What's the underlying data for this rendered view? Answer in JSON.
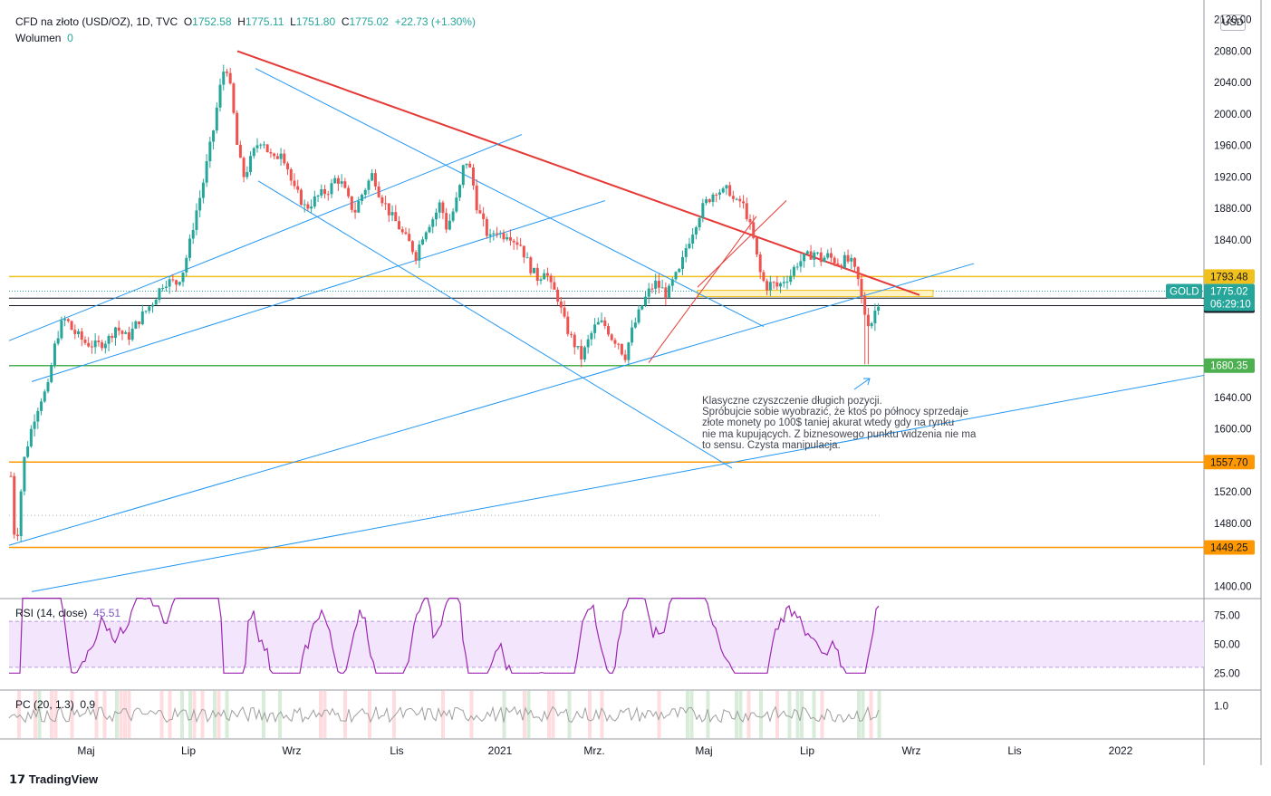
{
  "header": {
    "symbol": "CFD na złoto (USD/OZ), 1D, TVC",
    "o_label": "O",
    "o": "1752.58",
    "h_label": "H",
    "h": "1775.11",
    "l_label": "L",
    "l": "1751.80",
    "c_label": "C",
    "c": "1775.02",
    "change": "+22.73 (+1.30%)"
  },
  "volume": {
    "label": "Wolumen",
    "value": "0"
  },
  "currency": "USD",
  "rsi": {
    "label": "RSI (14, close)",
    "value": "45.51"
  },
  "pc": {
    "label": "PC (20, 1.3)",
    "value": "0.9"
  },
  "annotation": {
    "lines": [
      "Klasyczne czyszczenie długich pozycji.",
      "Spróbujcie sobie wyobrazić, że ktoś po północy sprzedaje",
      "złote monety po 100$ taniej akurat wtedy gdy na rynku",
      "nie ma kupujących. Z biznesowego punktu widzenia nie ma",
      "to sensu. Czysta manipulacja."
    ]
  },
  "branding": "TradingView",
  "colors": {
    "up": "#26a69a",
    "down": "#ef5350",
    "trend_red": "#e53935",
    "channel_blue": "#2196f3",
    "support_green": "#4caf50",
    "level_orange": "#ff9800",
    "level_yellow": "#f0c11c",
    "rsi_line": "#9c27b0",
    "rsi_band": "#f3e5fc"
  },
  "chart_data": {
    "type": "candlestick",
    "title": "CFD na złoto (USD/OZ), 1D, TVC",
    "y_axis": {
      "ticks": [
        "2120.00",
        "2080.00",
        "2040.00",
        "2000.00",
        "1960.00",
        "1920.00",
        "1880.00",
        "1840.00",
        "1793.48",
        "1766.10",
        "1756.49",
        "1680.35",
        "1640.00",
        "1600.00",
        "1557.70",
        "1520.00",
        "1480.00",
        "1449.25",
        "1400.00"
      ],
      "ylim": [
        1390,
        2130
      ]
    },
    "x_axis": {
      "ticks": [
        "Maj",
        "Lip",
        "Wrz",
        "Lis",
        "2021",
        "Mrz.",
        "Maj",
        "Lip",
        "Wrz",
        "Lis",
        "2022"
      ]
    },
    "last_price": {
      "label": "GOLD",
      "value": "1775.02",
      "countdown": "06:29:10"
    },
    "price_levels": [
      {
        "value": 1793.48,
        "label": "1793.48",
        "color": "#f0c11c"
      },
      {
        "value": 1766.1,
        "label": "1766.10",
        "color": "#131722"
      },
      {
        "value": 1756.49,
        "label": "1756.49",
        "color": "#131722"
      },
      {
        "value": 1680.35,
        "label": "1680.35",
        "color": "#4caf50"
      },
      {
        "value": 1557.7,
        "label": "1557.70",
        "color": "#ff9800"
      },
      {
        "value": 1449.25,
        "label": "1449.25",
        "color": "#ff9800"
      }
    ],
    "price_path": [
      [
        0,
        1540
      ],
      [
        0.5,
        1470
      ],
      [
        1,
        1460
      ],
      [
        2,
        1555
      ],
      [
        3,
        1590
      ],
      [
        4,
        1620
      ],
      [
        5,
        1640
      ],
      [
        6,
        1650
      ],
      [
        7,
        1700
      ],
      [
        8,
        1730
      ],
      [
        9,
        1740
      ],
      [
        10,
        1725
      ],
      [
        12,
        1710
      ],
      [
        14,
        1705
      ],
      [
        16,
        1715
      ],
      [
        17,
        1730
      ],
      [
        18,
        1722
      ],
      [
        19,
        1715
      ],
      [
        21,
        1740
      ],
      [
        23,
        1760
      ],
      [
        25,
        1788
      ],
      [
        27,
        1785
      ],
      [
        28,
        1800
      ],
      [
        29,
        1830
      ],
      [
        30,
        1870
      ],
      [
        31,
        1900
      ],
      [
        32,
        1940
      ],
      [
        33,
        1980
      ],
      [
        34,
        2030
      ],
      [
        35,
        2068
      ],
      [
        36,
        2020
      ],
      [
        37,
        1950
      ],
      [
        38,
        1920
      ],
      [
        39,
        1940
      ],
      [
        40,
        1960
      ],
      [
        41,
        1970
      ],
      [
        42,
        1950
      ],
      [
        43,
        1940
      ],
      [
        44,
        1955
      ],
      [
        45,
        1935
      ],
      [
        46,
        1905
      ],
      [
        47,
        1895
      ],
      [
        48,
        1880
      ],
      [
        50,
        1895
      ],
      [
        52,
        1905
      ],
      [
        53,
        1920
      ],
      [
        54,
        1910
      ],
      [
        55,
        1890
      ],
      [
        56,
        1875
      ],
      [
        57,
        1895
      ],
      [
        58,
        1910
      ],
      [
        59,
        1925
      ],
      [
        60,
        1900
      ],
      [
        61,
        1885
      ],
      [
        62,
        1870
      ],
      [
        63,
        1860
      ],
      [
        64,
        1845
      ],
      [
        65,
        1835
      ],
      [
        66,
        1820
      ],
      [
        67,
        1845
      ],
      [
        68,
        1860
      ],
      [
        69,
        1870
      ],
      [
        70,
        1888
      ],
      [
        71,
        1855
      ],
      [
        72,
        1875
      ],
      [
        73,
        1900
      ],
      [
        74,
        1945
      ],
      [
        75,
        1925
      ],
      [
        76,
        1880
      ],
      [
        77,
        1860
      ],
      [
        78,
        1840
      ],
      [
        79,
        1855
      ],
      [
        80,
        1845
      ],
      [
        81,
        1850
      ],
      [
        82,
        1840
      ],
      [
        83,
        1835
      ],
      [
        84,
        1815
      ],
      [
        85,
        1800
      ],
      [
        86,
        1790
      ],
      [
        87,
        1805
      ],
      [
        88,
        1780
      ],
      [
        89,
        1770
      ],
      [
        90,
        1740
      ],
      [
        91,
        1720
      ],
      [
        92,
        1705
      ],
      [
        93,
        1690
      ],
      [
        94,
        1710
      ],
      [
        95,
        1728
      ],
      [
        96,
        1735
      ],
      [
        97,
        1730
      ],
      [
        98,
        1715
      ],
      [
        99,
        1710
      ],
      [
        100,
        1690
      ],
      [
        101,
        1720
      ],
      [
        102,
        1740
      ],
      [
        103,
        1760
      ],
      [
        104,
        1775
      ],
      [
        105,
        1785
      ],
      [
        106,
        1778
      ],
      [
        107,
        1770
      ],
      [
        108,
        1790
      ],
      [
        109,
        1800
      ],
      [
        110,
        1830
      ],
      [
        111,
        1850
      ],
      [
        112,
        1870
      ],
      [
        113,
        1885
      ],
      [
        114,
        1895
      ],
      [
        115,
        1905
      ],
      [
        116,
        1900
      ],
      [
        117,
        1905
      ],
      [
        118,
        1885
      ],
      [
        119,
        1890
      ],
      [
        120,
        1870
      ],
      [
        121,
        1840
      ],
      [
        122,
        1800
      ],
      [
        123,
        1780
      ],
      [
        124,
        1785
      ],
      [
        125,
        1780
      ],
      [
        126,
        1790
      ],
      [
        127,
        1795
      ],
      [
        128,
        1810
      ],
      [
        129,
        1815
      ],
      [
        130,
        1820
      ],
      [
        131,
        1825
      ],
      [
        132,
        1815
      ],
      [
        133,
        1820
      ],
      [
        134,
        1815
      ],
      [
        135,
        1810
      ],
      [
        136,
        1815
      ],
      [
        137,
        1810
      ],
      [
        138,
        1790
      ],
      [
        139,
        1750
      ],
      [
        140,
        1730
      ],
      [
        141,
        1755
      ],
      [
        142,
        1775
      ]
    ],
    "rsi": {
      "levels": [
        75,
        50,
        25
      ],
      "band": [
        30,
        70
      ],
      "last": 45.51
    },
    "pc": {
      "levels": [
        1.0
      ],
      "last": 0.9
    }
  }
}
